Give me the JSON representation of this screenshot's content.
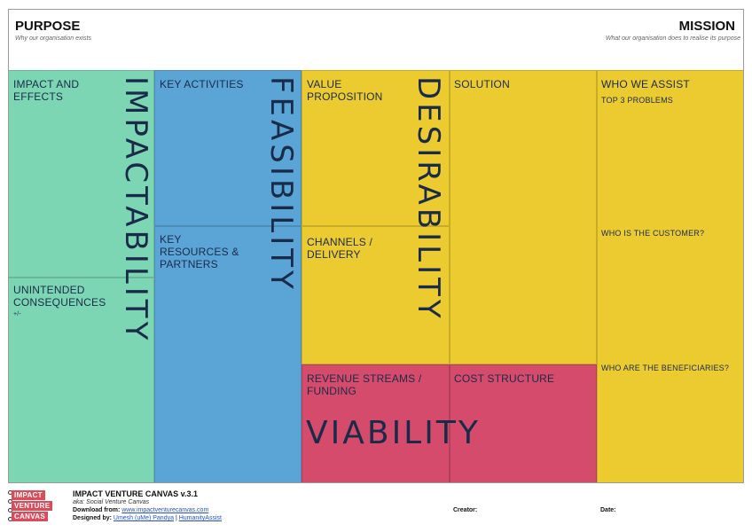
{
  "purpose": {
    "title": "PURPOSE",
    "subtitle": "Why our organisation exists"
  },
  "mission": {
    "title": "MISSION",
    "subtitle": "What our organisation does to realise its purpose"
  },
  "blocks": {
    "impact": "IMPACT AND EFFECTS",
    "unintended": "UNINTENDED CONSEQUENCES",
    "unintended_sup": "+/-",
    "key_activities": "KEY ACTIVITIES",
    "key_resources": "KEY RESOURCES & PARTNERS",
    "value_proposition": "VALUE PROPOSITION",
    "channels": "CHANNELS / DELIVERY",
    "solution": "SOLUTION",
    "who_we_assist": "WHO WE ASSIST",
    "top3": "TOP 3 PROBLEMS",
    "customer": "WHO IS THE CUSTOMER?",
    "beneficiaries": "WHO ARE THE BENEFICIARIES?",
    "revenue": "REVENUE STREAMS / FUNDING",
    "cost": "COST STRUCTURE"
  },
  "big_labels": {
    "impactability": "IMPACTABILITY",
    "feasibility": "FEASIBILITY",
    "desirability": "DESIRABILITY",
    "viability": "VIABILITY"
  },
  "footer": {
    "logo_lines": [
      "IMPACT",
      "VENTURE",
      "CANVAS"
    ],
    "title": "IMPACT VENTURE CANVAS v.3.1",
    "aka": "aka: Social Venture Canvas",
    "download_label": "Download from:",
    "download_link": "www.impactventurecanvas.com",
    "designed_label": "Designed by:",
    "designer_link": "Umesh (uMe) Pandya",
    "separator": "|",
    "org_link": "HumanityAssist",
    "creator": "Creator:",
    "date": "Date:"
  },
  "colors": {
    "green": "#7dd6b3",
    "blue": "#5ba5d6",
    "yellow": "#ebcb30",
    "pink": "#d44b6c",
    "text": "#1a2b4a"
  }
}
